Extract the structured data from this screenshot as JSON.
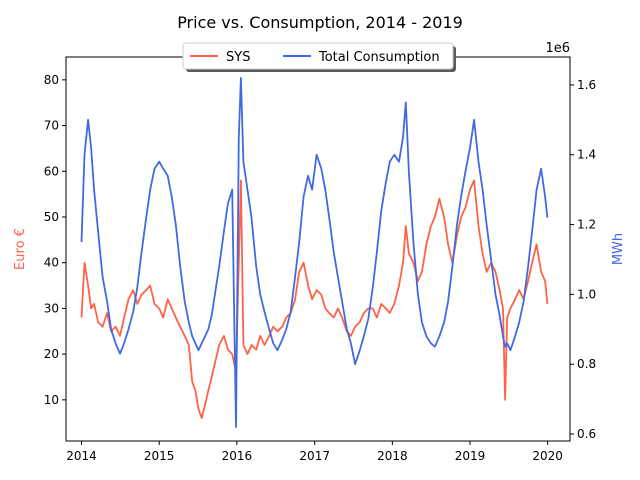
{
  "chart_data": {
    "type": "line",
    "title": "Price vs. Consumption, 2014 - 2019",
    "xlim": [
      "2013-10-20",
      "2020-04-15"
    ],
    "x_ticks": [
      "2014",
      "2015",
      "2016",
      "2017",
      "2018",
      "2019",
      "2020"
    ],
    "left_axis": {
      "label": "Euro €",
      "color": "#FF6347",
      "ylim": [
        1,
        85
      ],
      "ticks": [
        "10",
        "20",
        "30",
        "40",
        "50",
        "60",
        "70",
        "80"
      ]
    },
    "right_axis": {
      "label": "MWh",
      "color": "#4169E1",
      "ylim": [
        0.58,
        1.68
      ],
      "ticks": [
        "0.6",
        "0.8",
        "1.0",
        "1.2",
        "1.4",
        "1.6"
      ],
      "offset_text": "1e6"
    },
    "legend": {
      "placement": "top-center",
      "shadow": true
    },
    "series": [
      {
        "name": "SYS",
        "axis": "left",
        "color": "#FF6347",
        "points": [
          [
            "2014-01-01",
            28
          ],
          [
            "2014-01-15",
            40
          ],
          [
            "2014-02-01",
            35
          ],
          [
            "2014-02-15",
            30
          ],
          [
            "2014-03-01",
            31
          ],
          [
            "2014-03-20",
            27
          ],
          [
            "2014-04-10",
            26
          ],
          [
            "2014-05-01",
            29
          ],
          [
            "2014-05-20",
            25
          ],
          [
            "2014-06-10",
            26
          ],
          [
            "2014-07-01",
            24
          ],
          [
            "2014-07-20",
            28
          ],
          [
            "2014-08-10",
            32
          ],
          [
            "2014-09-01",
            34
          ],
          [
            "2014-09-20",
            31
          ],
          [
            "2014-10-10",
            33
          ],
          [
            "2014-11-01",
            34
          ],
          [
            "2014-11-20",
            35
          ],
          [
            "2014-12-10",
            31
          ],
          [
            "2015-01-01",
            30
          ],
          [
            "2015-01-20",
            28
          ],
          [
            "2015-02-10",
            32
          ],
          [
            "2015-03-01",
            30
          ],
          [
            "2015-03-20",
            28
          ],
          [
            "2015-04-10",
            26
          ],
          [
            "2015-05-01",
            24
          ],
          [
            "2015-05-20",
            22
          ],
          [
            "2015-06-05",
            14
          ],
          [
            "2015-06-20",
            12
          ],
          [
            "2015-07-05",
            8
          ],
          [
            "2015-07-20",
            6
          ],
          [
            "2015-08-05",
            9
          ],
          [
            "2015-08-20",
            12
          ],
          [
            "2015-09-05",
            15
          ],
          [
            "2015-09-20",
            18
          ],
          [
            "2015-10-10",
            22
          ],
          [
            "2015-11-01",
            24
          ],
          [
            "2015-11-20",
            21
          ],
          [
            "2015-12-10",
            20
          ],
          [
            "2015-12-28",
            16
          ],
          [
            "2016-01-10",
            40
          ],
          [
            "2016-01-20",
            58
          ],
          [
            "2016-02-01",
            22
          ],
          [
            "2016-02-20",
            20
          ],
          [
            "2016-03-10",
            22
          ],
          [
            "2016-04-01",
            21
          ],
          [
            "2016-04-20",
            24
          ],
          [
            "2016-05-10",
            22
          ],
          [
            "2016-06-01",
            24
          ],
          [
            "2016-06-20",
            26
          ],
          [
            "2016-07-10",
            25
          ],
          [
            "2016-08-01",
            26
          ],
          [
            "2016-08-20",
            28
          ],
          [
            "2016-09-10",
            29
          ],
          [
            "2016-10-01",
            32
          ],
          [
            "2016-10-20",
            38
          ],
          [
            "2016-11-10",
            40
          ],
          [
            "2016-12-01",
            35
          ],
          [
            "2016-12-20",
            32
          ],
          [
            "2017-01-10",
            34
          ],
          [
            "2017-02-01",
            33
          ],
          [
            "2017-02-20",
            30
          ],
          [
            "2017-03-10",
            29
          ],
          [
            "2017-04-01",
            28
          ],
          [
            "2017-04-20",
            30
          ],
          [
            "2017-05-10",
            28
          ],
          [
            "2017-06-01",
            25
          ],
          [
            "2017-06-20",
            24
          ],
          [
            "2017-07-10",
            26
          ],
          [
            "2017-08-01",
            27
          ],
          [
            "2017-08-20",
            29
          ],
          [
            "2017-09-10",
            30
          ],
          [
            "2017-10-01",
            30
          ],
          [
            "2017-10-20",
            28
          ],
          [
            "2017-11-10",
            31
          ],
          [
            "2017-12-01",
            30
          ],
          [
            "2017-12-20",
            29
          ],
          [
            "2018-01-10",
            31
          ],
          [
            "2018-02-01",
            35
          ],
          [
            "2018-02-20",
            40
          ],
          [
            "2018-03-05",
            48
          ],
          [
            "2018-03-20",
            42
          ],
          [
            "2018-04-10",
            40
          ],
          [
            "2018-05-01",
            36
          ],
          [
            "2018-05-20",
            38
          ],
          [
            "2018-06-10",
            44
          ],
          [
            "2018-07-01",
            48
          ],
          [
            "2018-07-20",
            50
          ],
          [
            "2018-08-10",
            54
          ],
          [
            "2018-09-01",
            50
          ],
          [
            "2018-09-20",
            44
          ],
          [
            "2018-10-10",
            40
          ],
          [
            "2018-11-01",
            46
          ],
          [
            "2018-11-20",
            50
          ],
          [
            "2018-12-10",
            52
          ],
          [
            "2019-01-01",
            56
          ],
          [
            "2019-01-20",
            58
          ],
          [
            "2019-02-10",
            48
          ],
          [
            "2019-03-01",
            42
          ],
          [
            "2019-03-20",
            38
          ],
          [
            "2019-04-10",
            40
          ],
          [
            "2019-05-01",
            38
          ],
          [
            "2019-05-20",
            34
          ],
          [
            "2019-06-05",
            30
          ],
          [
            "2019-06-15",
            10
          ],
          [
            "2019-06-25",
            28
          ],
          [
            "2019-07-10",
            30
          ],
          [
            "2019-08-01",
            32
          ],
          [
            "2019-08-20",
            34
          ],
          [
            "2019-09-10",
            32
          ],
          [
            "2019-10-01",
            36
          ],
          [
            "2019-10-20",
            40
          ],
          [
            "2019-11-10",
            44
          ],
          [
            "2019-12-01",
            38
          ],
          [
            "2019-12-20",
            36
          ],
          [
            "2019-12-31",
            31
          ]
        ]
      },
      {
        "name": "Total Consumption",
        "axis": "right",
        "color": "#4169E1",
        "points": [
          [
            "2014-01-01",
            1.15
          ],
          [
            "2014-01-15",
            1.4
          ],
          [
            "2014-02-01",
            1.5
          ],
          [
            "2014-02-15",
            1.42
          ],
          [
            "2014-03-01",
            1.3
          ],
          [
            "2014-03-20",
            1.18
          ],
          [
            "2014-04-10",
            1.05
          ],
          [
            "2014-05-01",
            0.98
          ],
          [
            "2014-05-20",
            0.9
          ],
          [
            "2014-06-10",
            0.86
          ],
          [
            "2014-07-01",
            0.83
          ],
          [
            "2014-07-20",
            0.86
          ],
          [
            "2014-08-10",
            0.9
          ],
          [
            "2014-09-01",
            0.95
          ],
          [
            "2014-09-20",
            1.02
          ],
          [
            "2014-10-10",
            1.12
          ],
          [
            "2014-11-01",
            1.22
          ],
          [
            "2014-11-20",
            1.3
          ],
          [
            "2014-12-10",
            1.36
          ],
          [
            "2015-01-01",
            1.38
          ],
          [
            "2015-01-20",
            1.36
          ],
          [
            "2015-02-10",
            1.34
          ],
          [
            "2015-03-01",
            1.28
          ],
          [
            "2015-03-20",
            1.2
          ],
          [
            "2015-04-10",
            1.08
          ],
          [
            "2015-05-01",
            0.98
          ],
          [
            "2015-05-20",
            0.92
          ],
          [
            "2015-06-05",
            0.88
          ],
          [
            "2015-06-20",
            0.86
          ],
          [
            "2015-07-05",
            0.84
          ],
          [
            "2015-07-20",
            0.86
          ],
          [
            "2015-08-05",
            0.88
          ],
          [
            "2015-08-20",
            0.9
          ],
          [
            "2015-09-05",
            0.94
          ],
          [
            "2015-09-20",
            1.0
          ],
          [
            "2015-10-10",
            1.08
          ],
          [
            "2015-11-01",
            1.18
          ],
          [
            "2015-11-20",
            1.26
          ],
          [
            "2015-12-10",
            1.3
          ],
          [
            "2015-12-28",
            0.62
          ],
          [
            "2016-01-10",
            1.45
          ],
          [
            "2016-01-20",
            1.62
          ],
          [
            "2016-02-01",
            1.38
          ],
          [
            "2016-02-20",
            1.3
          ],
          [
            "2016-03-10",
            1.22
          ],
          [
            "2016-04-01",
            1.08
          ],
          [
            "2016-04-20",
            1.0
          ],
          [
            "2016-05-10",
            0.95
          ],
          [
            "2016-06-01",
            0.9
          ],
          [
            "2016-06-20",
            0.86
          ],
          [
            "2016-07-10",
            0.84
          ],
          [
            "2016-08-01",
            0.87
          ],
          [
            "2016-08-20",
            0.9
          ],
          [
            "2016-09-10",
            0.95
          ],
          [
            "2016-10-01",
            1.05
          ],
          [
            "2016-10-20",
            1.15
          ],
          [
            "2016-11-10",
            1.28
          ],
          [
            "2016-12-01",
            1.34
          ],
          [
            "2016-12-20",
            1.3
          ],
          [
            "2017-01-10",
            1.4
          ],
          [
            "2017-02-01",
            1.36
          ],
          [
            "2017-02-20",
            1.3
          ],
          [
            "2017-03-10",
            1.22
          ],
          [
            "2017-04-01",
            1.12
          ],
          [
            "2017-04-20",
            1.05
          ],
          [
            "2017-05-10",
            0.98
          ],
          [
            "2017-06-01",
            0.9
          ],
          [
            "2017-06-20",
            0.86
          ],
          [
            "2017-07-10",
            0.8
          ],
          [
            "2017-08-01",
            0.84
          ],
          [
            "2017-08-20",
            0.88
          ],
          [
            "2017-09-10",
            0.93
          ],
          [
            "2017-10-01",
            1.02
          ],
          [
            "2017-10-20",
            1.12
          ],
          [
            "2017-11-10",
            1.24
          ],
          [
            "2017-12-01",
            1.32
          ],
          [
            "2017-12-20",
            1.38
          ],
          [
            "2018-01-10",
            1.4
          ],
          [
            "2018-02-01",
            1.38
          ],
          [
            "2018-02-20",
            1.45
          ],
          [
            "2018-03-05",
            1.55
          ],
          [
            "2018-03-20",
            1.35
          ],
          [
            "2018-04-10",
            1.15
          ],
          [
            "2018-05-01",
            1.0
          ],
          [
            "2018-05-20",
            0.92
          ],
          [
            "2018-06-10",
            0.88
          ],
          [
            "2018-07-01",
            0.86
          ],
          [
            "2018-07-20",
            0.85
          ],
          [
            "2018-08-10",
            0.88
          ],
          [
            "2018-09-01",
            0.92
          ],
          [
            "2018-09-20",
            0.98
          ],
          [
            "2018-10-10",
            1.08
          ],
          [
            "2018-11-01",
            1.2
          ],
          [
            "2018-11-20",
            1.28
          ],
          [
            "2018-12-10",
            1.35
          ],
          [
            "2019-01-01",
            1.42
          ],
          [
            "2019-01-20",
            1.5
          ],
          [
            "2019-02-10",
            1.38
          ],
          [
            "2019-03-01",
            1.3
          ],
          [
            "2019-03-20",
            1.2
          ],
          [
            "2019-04-10",
            1.1
          ],
          [
            "2019-05-01",
            1.0
          ],
          [
            "2019-05-20",
            0.94
          ],
          [
            "2019-06-05",
            0.88
          ],
          [
            "2019-06-15",
            0.85
          ],
          [
            "2019-06-25",
            0.86
          ],
          [
            "2019-07-10",
            0.84
          ],
          [
            "2019-08-01",
            0.88
          ],
          [
            "2019-08-20",
            0.92
          ],
          [
            "2019-09-10",
            0.98
          ],
          [
            "2019-10-01",
            1.08
          ],
          [
            "2019-10-20",
            1.18
          ],
          [
            "2019-11-10",
            1.3
          ],
          [
            "2019-12-01",
            1.36
          ],
          [
            "2019-12-20",
            1.28
          ],
          [
            "2019-12-31",
            1.22
          ]
        ]
      }
    ]
  }
}
